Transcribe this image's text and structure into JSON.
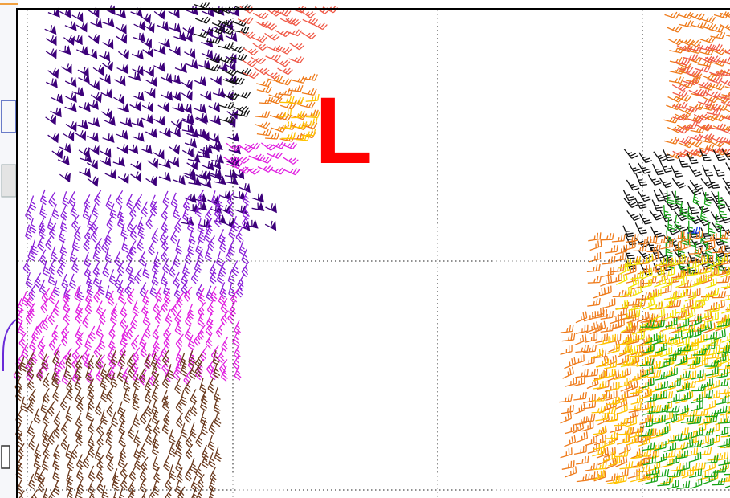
{
  "map": {
    "pressure_label": "L",
    "pressure_label_color": "#ff0000",
    "gridline_style": "dotted",
    "gridline_color": "#222222",
    "frame_color": "#000000",
    "symbol_type": "wind barbs",
    "barb_colors": {
      "indigo": "#3d007a",
      "violet": "#8a1fd8",
      "magenta": "#e020e0",
      "brown": "#6b3a1e",
      "black": "#111111",
      "coral": "#f05a48",
      "orange": "#ee7a1a",
      "gold": "#ffc300",
      "yellow": "#f2e200",
      "green": "#16a316",
      "blue": "#1030e0"
    }
  }
}
